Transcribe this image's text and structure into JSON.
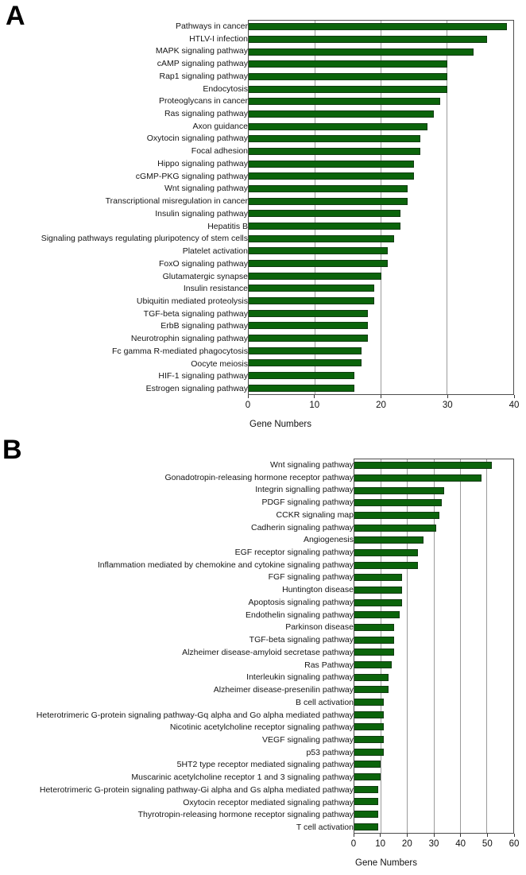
{
  "figure": {
    "panel_a_letter": "A",
    "panel_b_letter": "B"
  },
  "chart_data": [
    {
      "type": "bar",
      "orientation": "horizontal",
      "panel_label": "A",
      "title": "",
      "xlabel": "Gene Numbers",
      "ylabel": "",
      "xlim": [
        0,
        40
      ],
      "xticks": [
        0,
        10,
        20,
        30,
        40
      ],
      "grid": "vertical-gridlines-on",
      "legend": "none",
      "bar_color": "#0b640b",
      "bar_border_color": "#123a12",
      "gridline_color": "#9b9b9b",
      "categories": [
        "Pathways in cancer",
        "HTLV-I infection",
        "MAPK signaling pathway",
        "cAMP signaling pathway",
        "Rap1 signaling pathway",
        "Endocytosis",
        "Proteoglycans in cancer",
        "Ras signaling pathway",
        "Axon guidance",
        "Oxytocin signaling pathway",
        "Focal adhesion",
        "Hippo signaling pathway",
        "cGMP-PKG signaling pathway",
        "Wnt signaling pathway",
        "Transcriptional misregulation in cancer",
        "Insulin signaling pathway",
        "Hepatitis B",
        "Signaling pathways regulating pluripotency of stem cells",
        "Platelet activation",
        "FoxO signaling pathway",
        "Glutamatergic synapse",
        "Insulin resistance",
        "Ubiquitin mediated proteolysis",
        "TGF-beta signaling pathway",
        "ErbB signaling pathway",
        "Neurotrophin signaling pathway",
        "Fc gamma R-mediated phagocytosis",
        "Oocyte meiosis",
        "HIF-1 signaling pathway",
        "Estrogen signaling pathway"
      ],
      "values": [
        39,
        36,
        34,
        30,
        30,
        30,
        29,
        28,
        27,
        26,
        26,
        25,
        25,
        24,
        24,
        23,
        23,
        22,
        21,
        21,
        20,
        19,
        19,
        18,
        18,
        18,
        17,
        17,
        16,
        16
      ]
    },
    {
      "type": "bar",
      "orientation": "horizontal",
      "panel_label": "B",
      "title": "",
      "xlabel": "Gene Numbers",
      "ylabel": "",
      "xlim": [
        0,
        60
      ],
      "xticks": [
        0,
        10,
        20,
        30,
        40,
        50,
        60
      ],
      "grid": "vertical-gridlines-on",
      "legend": "none",
      "bar_color": "#0b640b",
      "bar_border_color": "#123a12",
      "gridline_color": "#9b9b9b",
      "categories": [
        "Wnt signaling pathway",
        "Gonadotropin-releasing hormone receptor pathway",
        "Integrin signalling pathway",
        "PDGF signaling pathway",
        "CCKR signaling map",
        "Cadherin signaling pathway",
        "Angiogenesis",
        "EGF receptor signaling pathway",
        "Inflammation mediated by chemokine and cytokine signaling pathway",
        "FGF signaling pathway",
        "Huntington disease",
        "Apoptosis signaling pathway",
        "Endothelin signaling pathway",
        "Parkinson disease",
        "TGF-beta signaling pathway",
        "Alzheimer disease-amyloid secretase pathway",
        "Ras Pathway",
        "Interleukin signaling pathway",
        "Alzheimer disease-presenilin pathway",
        "B cell activation",
        "Heterotrimeric G-protein signaling pathway-Gq alpha and Go alpha mediated pathway",
        "Nicotinic acetylcholine receptor signaling pathway",
        "VEGF signaling pathway",
        "p53 pathway",
        "5HT2 type receptor mediated signaling pathway",
        "Muscarinic acetylcholine receptor 1 and 3 signaling pathway",
        "Heterotrimeric G-protein signaling pathway-Gi alpha and Gs alpha mediated pathway",
        "Oxytocin receptor mediated signaling pathway",
        "Thyrotropin-releasing hormone receptor signaling pathway",
        "T cell activation"
      ],
      "values": [
        52,
        48,
        34,
        33,
        32,
        31,
        26,
        24,
        24,
        18,
        18,
        18,
        17,
        15,
        15,
        15,
        14,
        13,
        13,
        11,
        11,
        11,
        11,
        11,
        10,
        10,
        9,
        9,
        9,
        9
      ]
    }
  ]
}
